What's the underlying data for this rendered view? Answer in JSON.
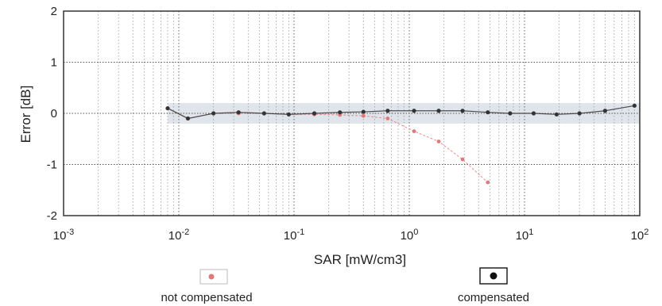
{
  "chart_data": {
    "type": "scatter",
    "title": "",
    "xlabel": "SAR [mW/cm3]",
    "ylabel": "Error [dB]",
    "xscale": "log",
    "xlim": [
      0.001,
      100
    ],
    "ylim": [
      -2,
      2
    ],
    "grid": true,
    "x_ticks": [
      {
        "value": 0.001,
        "base": "10",
        "exp": "-3"
      },
      {
        "value": 0.01,
        "base": "10",
        "exp": "-2"
      },
      {
        "value": 0.1,
        "base": "10",
        "exp": "-1"
      },
      {
        "value": 1,
        "base": "10",
        "exp": "0"
      },
      {
        "value": 10,
        "base": "10",
        "exp": "1"
      },
      {
        "value": 100,
        "base": "10",
        "exp": "2"
      }
    ],
    "y_ticks": [
      {
        "value": 2,
        "label": "2"
      },
      {
        "value": 1,
        "label": "1"
      },
      {
        "value": 0,
        "label": "0"
      },
      {
        "value": -1,
        "label": "-1"
      },
      {
        "value": -2,
        "label": "-2"
      }
    ],
    "uncertainty_band": [
      -0.2,
      0.2
    ],
    "band_color": "#d8dde6",
    "series": [
      {
        "name": "not compensated",
        "color": "#e07a7a",
        "x": [
          0.008,
          0.012,
          0.02,
          0.033,
          0.055,
          0.09,
          0.15,
          0.25,
          0.4,
          0.65,
          1.1,
          1.8,
          2.9,
          4.8
        ],
        "y": [
          0.1,
          -0.1,
          0.0,
          0.0,
          0.0,
          -0.02,
          -0.02,
          -0.03,
          -0.05,
          -0.1,
          -0.35,
          -0.55,
          -0.9,
          -1.35
        ]
      },
      {
        "name": "compensated",
        "color": "#333333",
        "x": [
          0.008,
          0.012,
          0.02,
          0.033,
          0.055,
          0.09,
          0.15,
          0.25,
          0.4,
          0.65,
          1.1,
          1.8,
          2.9,
          4.8,
          7.5,
          12,
          19,
          30,
          50,
          90
        ],
        "y": [
          0.1,
          -0.1,
          0.0,
          0.02,
          0.0,
          -0.02,
          0.0,
          0.02,
          0.03,
          0.05,
          0.05,
          0.05,
          0.05,
          0.02,
          0.0,
          0.0,
          -0.02,
          0.0,
          0.05,
          0.15
        ]
      }
    ],
    "legend": {
      "position": "bottom",
      "items": [
        {
          "label": "not compensated",
          "color": "#e07a7a"
        },
        {
          "label": "compensated",
          "color": "#111111"
        }
      ]
    }
  }
}
